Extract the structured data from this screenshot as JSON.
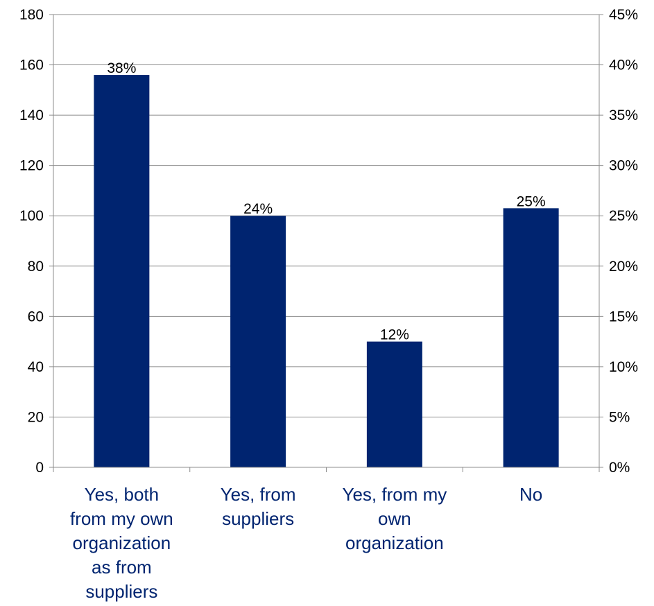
{
  "chart_data": {
    "type": "bar",
    "title": "",
    "xlabel": "",
    "ylabel": "",
    "categories": [
      [
        "Yes, both",
        "from my own",
        "organization",
        "as from",
        "suppliers"
      ],
      [
        "Yes, from",
        "suppliers"
      ],
      [
        "Yes, from my",
        "own",
        "organization"
      ],
      [
        "No"
      ]
    ],
    "values": [
      156,
      100,
      50,
      103
    ],
    "data_labels": [
      "38%",
      "24%",
      "12%",
      "25%"
    ],
    "ylim": [
      0,
      180
    ],
    "y_ticks": [
      "0",
      "20",
      "40",
      "60",
      "80",
      "100",
      "120",
      "140",
      "160",
      "180"
    ],
    "y2lim": [
      0,
      45
    ],
    "y2_ticks": [
      "0%",
      "5%",
      "10%",
      "15%",
      "20%",
      "25%",
      "30%",
      "35%",
      "40%",
      "45%"
    ],
    "grid": true,
    "legend": "none",
    "colors": {
      "bar": "#002470",
      "category_text": "#002470",
      "axis": "#8c8c8c",
      "grid": "#8c8c8c"
    }
  }
}
